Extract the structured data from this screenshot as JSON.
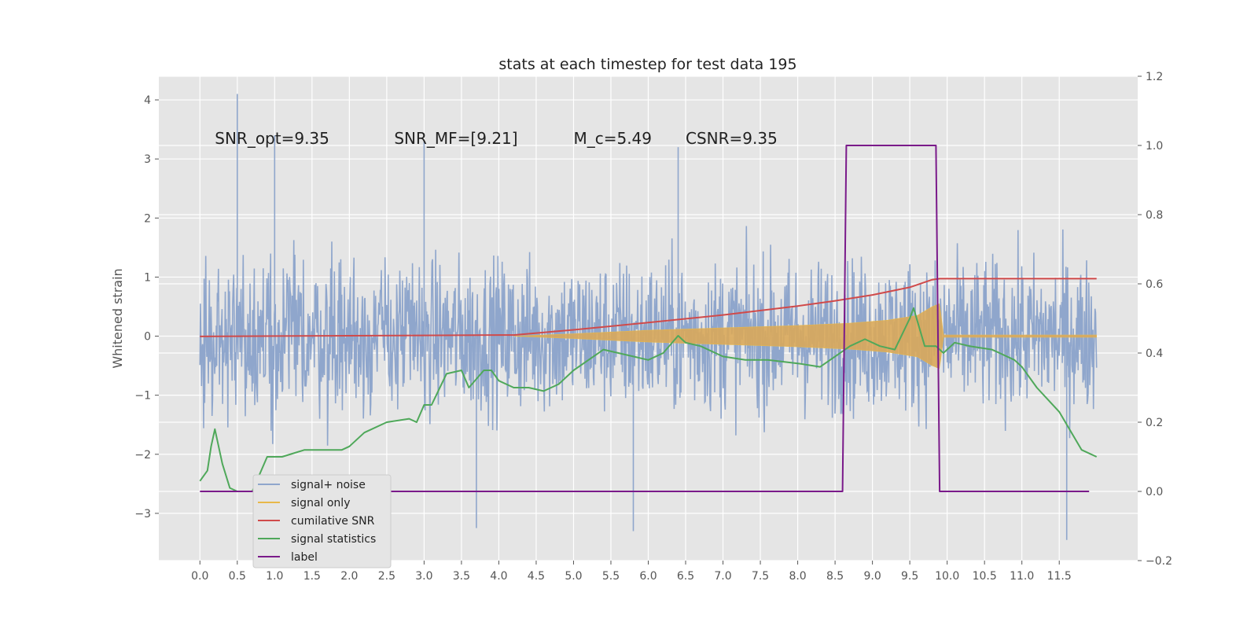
{
  "chart_data": {
    "type": "line",
    "title": "stats at each timestep for test data 195",
    "ylabel": "Whitened strain",
    "xlabel": "",
    "xlim": [
      -0.55,
      12.55
    ],
    "ylim": [
      -3.8,
      4.4
    ],
    "ylim_right": [
      -0.2,
      1.2
    ],
    "grid": true,
    "x_ticks": [
      0.0,
      0.5,
      1.0,
      1.5,
      2.0,
      2.5,
      3.0,
      3.5,
      4.0,
      4.5,
      5.0,
      5.5,
      6.0,
      6.5,
      7.0,
      7.5,
      8.0,
      8.5,
      9.0,
      9.5,
      10.0,
      10.5,
      11.0,
      11.5
    ],
    "x_tick_labels": [
      "0.0",
      "0.5",
      "1.0",
      "1.5",
      "2.0",
      "2.5",
      "3.0",
      "3.5",
      "4.0",
      "4.5",
      "5.0",
      "5.5",
      "6.0",
      "6.5",
      "7.0",
      "7.5",
      "8.0",
      "8.5",
      "9.0",
      "9.5",
      "10.0",
      "10.5",
      "11.0",
      "11.5"
    ],
    "y_ticks_left": [
      4,
      3,
      2,
      1,
      0,
      -1,
      -2,
      -3
    ],
    "y_tick_labels_left": [
      "4",
      "3",
      "2",
      "1",
      "0",
      "−1",
      "−2",
      "−3"
    ],
    "y_ticks_right": [
      1.2,
      1.0,
      0.8,
      0.6,
      0.4,
      0.2,
      0.0,
      -0.2
    ],
    "y_tick_labels_right": [
      "1.2",
      "1.0",
      "0.8",
      "0.6",
      "0.4",
      "0.2",
      "0.0",
      "−0.2"
    ],
    "annotations": [
      {
        "text": "SNR_opt=9.35",
        "x": 0.2,
        "y": 3.35
      },
      {
        "text": "SNR_MF=[9.21]",
        "x": 2.6,
        "y": 3.35
      },
      {
        "text": "M_c=5.49",
        "x": 5.0,
        "y": 3.35
      },
      {
        "text": "CSNR=9.35",
        "x": 6.5,
        "y": 3.35
      }
    ],
    "series": [
      {
        "name": "signal+ noise",
        "axis": "left",
        "color": "#8fa6cc",
        "style": "noise",
        "x_range": [
          0.0,
          12.0
        ],
        "envelope": 2.6,
        "peaks": [
          [
            0.5,
            4.1
          ],
          [
            1.0,
            3.4
          ],
          [
            3.0,
            3.3
          ],
          [
            6.0,
            0.7
          ],
          [
            6.4,
            3.2
          ],
          [
            11.6,
            -3.45
          ],
          [
            5.8,
            -3.3
          ],
          [
            3.7,
            -3.25
          ]
        ]
      },
      {
        "name": "signal only",
        "axis": "left",
        "color": "#e8b84a",
        "style": "chirp",
        "x_range": [
          4.2,
          12.0
        ],
        "envelope": [
          [
            4.2,
            0.0
          ],
          [
            5.0,
            0.04
          ],
          [
            6.0,
            0.1
          ],
          [
            7.0,
            0.14
          ],
          [
            8.0,
            0.18
          ],
          [
            8.7,
            0.22
          ],
          [
            9.2,
            0.27
          ],
          [
            9.6,
            0.35
          ],
          [
            9.8,
            0.5
          ],
          [
            9.9,
            0.55
          ],
          [
            9.95,
            0.02
          ],
          [
            12.0,
            0.02
          ]
        ]
      },
      {
        "name": "cumilative SNR",
        "axis": "right",
        "color": "#d04a4a",
        "x": [
          0.0,
          2.0,
          4.2,
          5.0,
          6.0,
          7.0,
          8.0,
          8.5,
          9.0,
          9.5,
          9.8,
          9.9,
          12.0
        ],
        "y": [
          0.448,
          0.45,
          0.452,
          0.467,
          0.488,
          0.51,
          0.536,
          0.551,
          0.568,
          0.59,
          0.612,
          0.615,
          0.615
        ]
      },
      {
        "name": "signal statistics",
        "axis": "right",
        "color": "#4fa85a",
        "x": [
          0.0,
          0.1,
          0.15,
          0.2,
          0.3,
          0.4,
          0.5,
          0.7,
          0.9,
          1.0,
          1.1,
          1.4,
          1.6,
          1.9,
          2.0,
          2.2,
          2.5,
          2.8,
          2.9,
          3.0,
          3.1,
          3.3,
          3.5,
          3.6,
          3.8,
          3.9,
          4.0,
          4.2,
          4.4,
          4.6,
          4.8,
          5.0,
          5.2,
          5.4,
          5.6,
          5.8,
          6.0,
          6.2,
          6.4,
          6.5,
          6.7,
          7.0,
          7.3,
          7.6,
          8.0,
          8.3,
          8.5,
          8.7,
          8.9,
          9.1,
          9.3,
          9.5,
          9.55,
          9.7,
          9.85,
          9.95,
          10.1,
          10.3,
          10.6,
          10.9,
          11.0,
          11.2,
          11.5,
          11.8,
          12.0
        ],
        "y": [
          0.03,
          0.06,
          0.13,
          0.18,
          0.08,
          0.01,
          0.0,
          0.0,
          0.1,
          0.1,
          0.1,
          0.12,
          0.12,
          0.12,
          0.13,
          0.17,
          0.2,
          0.21,
          0.2,
          0.25,
          0.25,
          0.34,
          0.35,
          0.3,
          0.35,
          0.35,
          0.32,
          0.3,
          0.3,
          0.29,
          0.31,
          0.35,
          0.38,
          0.41,
          0.4,
          0.39,
          0.38,
          0.4,
          0.45,
          0.43,
          0.42,
          0.39,
          0.38,
          0.38,
          0.37,
          0.36,
          0.39,
          0.42,
          0.44,
          0.42,
          0.41,
          0.5,
          0.53,
          0.42,
          0.42,
          0.4,
          0.43,
          0.42,
          0.41,
          0.38,
          0.36,
          0.3,
          0.23,
          0.12,
          0.1
        ]
      },
      {
        "name": "label",
        "axis": "right",
        "color": "#7a1a8a",
        "x": [
          0.0,
          8.6,
          8.65,
          9.85,
          9.9,
          11.9
        ],
        "y": [
          0.0,
          0.0,
          1.0,
          1.0,
          0.0,
          0.0
        ]
      }
    ],
    "legend_position": "lower-left",
    "legend_labels": [
      "signal+ noise",
      "signal only",
      "cumilative SNR",
      "signal statistics",
      "label"
    ]
  }
}
